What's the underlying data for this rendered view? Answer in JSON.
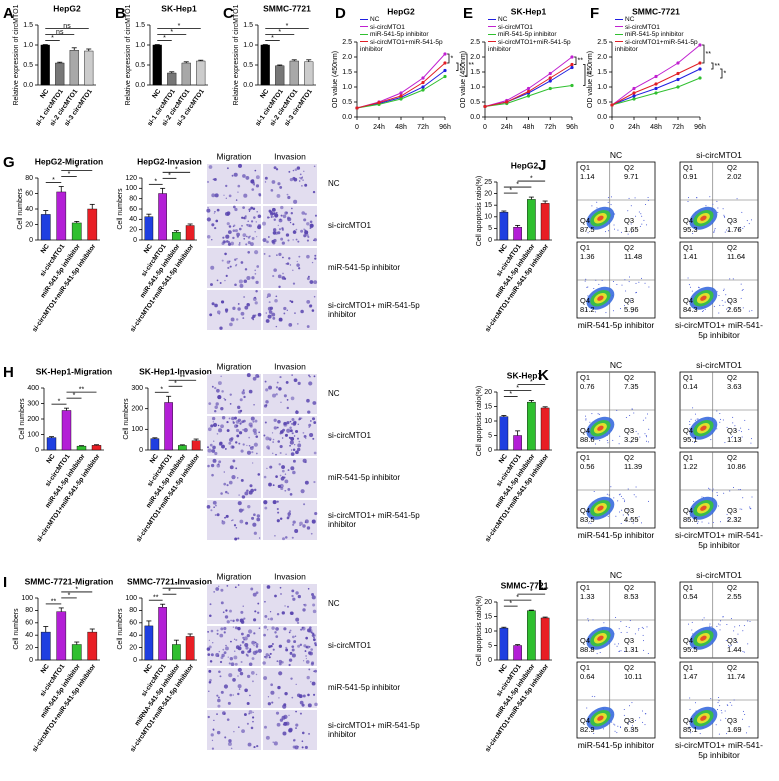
{
  "chart_data": [
    {
      "type": "bar",
      "panel_letter": "A",
      "title": "HepG2",
      "ylabel": "Relative expression of circMTO1",
      "categories": [
        "NC",
        "si-1 circMTO1",
        "si-2 circMTO1",
        "si-3 circMTO1"
      ],
      "values": [
        1.0,
        0.55,
        0.87,
        0.85
      ],
      "errors": [
        0.01,
        0.02,
        0.06,
        0.05
      ],
      "colors": [
        "#000000",
        "#777777",
        "#a8a8a8",
        "#cccccc"
      ],
      "ylim": [
        0,
        1.5
      ],
      "yticks": [
        {
          "value": 0,
          "label": "0.0"
        },
        0.5,
        {
          "value": 1,
          "label": "1.0"
        },
        1.5
      ],
      "brackets": [
        {
          "from": 0,
          "to": 1,
          "label": "*"
        },
        {
          "from": 0,
          "to": 2,
          "label": "ns"
        },
        {
          "from": 0,
          "to": 3,
          "label": "ns"
        }
      ]
    },
    {
      "type": "bar",
      "panel_letter": "B",
      "title": "SK-Hep1",
      "ylabel": "Relative expression of circMTO1",
      "categories": [
        "NC",
        "si-1 circMTO1",
        "si-2 circMTO1",
        "si-3 circMTO1"
      ],
      "values": [
        1.0,
        0.3,
        0.55,
        0.6
      ],
      "errors": [
        0.01,
        0.03,
        0.03,
        0.02
      ],
      "colors": [
        "#000000",
        "#777777",
        "#a8a8a8",
        "#cccccc"
      ],
      "ylim": [
        0,
        1.5
      ],
      "yticks": [
        {
          "value": 0,
          "label": "0.0"
        },
        0.5,
        {
          "value": 1,
          "label": "1.0"
        },
        1.5
      ],
      "brackets": [
        {
          "from": 0,
          "to": 1,
          "label": "*"
        },
        {
          "from": 0,
          "to": 2,
          "label": "*"
        },
        {
          "from": 0,
          "to": 3,
          "label": "*"
        }
      ]
    },
    {
      "type": "bar",
      "panel_letter": "C",
      "title": "SMMC-7721",
      "ylabel": "Relative expression of circMTO1",
      "categories": [
        "NC",
        "si-1 circMTO1",
        "si-2 circMTO1",
        "si-3 circMTO1"
      ],
      "values": [
        1.0,
        0.48,
        0.6,
        0.58
      ],
      "errors": [
        0.01,
        0.02,
        0.03,
        0.05
      ],
      "colors": [
        "#000000",
        "#777777",
        "#a8a8a8",
        "#cccccc"
      ],
      "ylim": [
        0,
        1.5
      ],
      "yticks": [
        {
          "value": 0,
          "label": "0.0"
        },
        0.5,
        {
          "value": 1,
          "label": "1.0"
        },
        1.5
      ],
      "brackets": [
        {
          "from": 0,
          "to": 1,
          "label": "*"
        },
        {
          "from": 0,
          "to": 2,
          "label": "*"
        },
        {
          "from": 0,
          "to": 3,
          "label": "*"
        }
      ]
    },
    {
      "type": "line",
      "panel_letter": "D",
      "title": "HepG2",
      "ylabel": "OD value (450nm)",
      "categories": [
        "0",
        "24h",
        "48h",
        "72h",
        "96h"
      ],
      "ylim": [
        0,
        2.5
      ],
      "yticks": [
        {
          "value": 0,
          "label": "0.0"
        },
        0.5,
        {
          "value": 1,
          "label": "1.0"
        },
        1.5,
        {
          "value": 2,
          "label": "2.0"
        },
        2.5
      ],
      "series": [
        {
          "name": "NC",
          "color": "#1f1fe0",
          "values": [
            0.3,
            0.45,
            0.65,
            1.0,
            1.55
          ]
        },
        {
          "name": "si-circMTO1",
          "color": "#c020d0",
          "values": [
            0.3,
            0.5,
            0.8,
            1.3,
            2.1
          ]
        },
        {
          "name": "miR-541-5p inhibitor",
          "color": "#30c030",
          "values": [
            0.3,
            0.42,
            0.6,
            0.9,
            1.35
          ]
        },
        {
          "name": "si-circMTO1+miR-541-5p inhibitor",
          "color": "#e01e25",
          "values": [
            0.3,
            0.48,
            0.7,
            1.15,
            1.8
          ]
        }
      ],
      "brackets": [
        {
          "from": 1,
          "to": 3,
          "label": "*"
        },
        {
          "from": 3,
          "to": 0,
          "label": "*"
        },
        {
          "from": 1,
          "to": 2,
          "label": "**"
        }
      ]
    },
    {
      "type": "line",
      "panel_letter": "E",
      "title": "SK-Hep1",
      "ylabel": "OD value (450nm)",
      "categories": [
        "0",
        "24h",
        "48h",
        "72h",
        "96h"
      ],
      "ylim": [
        0,
        2.5
      ],
      "yticks": [
        {
          "value": 0,
          "label": "0.0"
        },
        0.5,
        {
          "value": 1,
          "label": "1.0"
        },
        1.5,
        {
          "value": 2,
          "label": "2.0"
        },
        2.5
      ],
      "series": [
        {
          "name": "NC",
          "color": "#1f1fe0",
          "values": [
            0.35,
            0.5,
            0.8,
            1.2,
            1.65
          ]
        },
        {
          "name": "si-circMTO1",
          "color": "#c020d0",
          "values": [
            0.35,
            0.55,
            0.95,
            1.45,
            2.0
          ]
        },
        {
          "name": "miR-541-5p inhibitor",
          "color": "#30c030",
          "values": [
            0.35,
            0.45,
            0.7,
            0.95,
            1.05
          ]
        },
        {
          "name": "si-circMTO1+miR-541-5p inhibitor",
          "color": "#e01e25",
          "values": [
            0.35,
            0.5,
            0.85,
            1.3,
            1.75
          ]
        }
      ],
      "brackets": [
        {
          "from": 1,
          "to": 3,
          "label": "**"
        },
        {
          "from": 3,
          "to": 2,
          "label": "**"
        }
      ]
    },
    {
      "type": "line",
      "panel_letter": "F",
      "title": "SMMC-7721",
      "ylabel": "OD value (450nm)",
      "categories": [
        "0",
        "24h",
        "48h",
        "72h",
        "96h"
      ],
      "ylim": [
        0,
        2.5
      ],
      "yticks": [
        {
          "value": 0,
          "label": "0.0"
        },
        0.5,
        {
          "value": 1,
          "label": "1.0"
        },
        1.5,
        {
          "value": 2,
          "label": "2.0"
        },
        2.5
      ],
      "series": [
        {
          "name": "NC",
          "color": "#1f1fe0",
          "values": [
            0.4,
            0.7,
            0.95,
            1.25,
            1.6
          ]
        },
        {
          "name": "si-circMTO1",
          "color": "#c020d0",
          "values": [
            0.4,
            0.95,
            1.35,
            1.8,
            2.4
          ]
        },
        {
          "name": "miR-541-5p inhibitor",
          "color": "#30c030",
          "values": [
            0.4,
            0.6,
            0.8,
            1.0,
            1.3
          ]
        },
        {
          "name": "si-circMTO1+miR-541-5p inhibitor",
          "color": "#e01e25",
          "values": [
            0.4,
            0.8,
            1.1,
            1.45,
            1.8
          ]
        }
      ],
      "brackets": [
        {
          "from": 1,
          "to": 3,
          "label": "**"
        },
        {
          "from": 3,
          "to": 0,
          "label": "**"
        },
        {
          "from": 0,
          "to": 2,
          "label": "*"
        }
      ]
    },
    {
      "type": "bar",
      "panel_letter": "G",
      "title": "HepG2-Migration",
      "ylabel": "Cell numbers",
      "categories": [
        "NC",
        "si-circMTO1",
        "miR-541-5p inhibitor",
        "si-circMTO1+miR-541-5p inhibitor"
      ],
      "values": [
        33,
        62,
        22,
        40
      ],
      "errors": [
        5,
        7,
        2,
        6
      ],
      "colors": [
        "#1f3fe0",
        "#b31fd6",
        "#2fbf2f",
        "#e81e25"
      ],
      "ylim": [
        0,
        80
      ],
      "yticks": [
        0,
        20,
        40,
        60,
        80
      ],
      "brackets": [
        {
          "from": 0,
          "to": 1,
          "label": "*"
        },
        {
          "from": 1,
          "to": 2,
          "label": "*"
        },
        {
          "from": 1,
          "to": 3,
          "label": "*"
        }
      ]
    },
    {
      "type": "bar",
      "title": "HepG2-Invasion",
      "ylabel": "Cell numbers",
      "categories": [
        "NC",
        "si-circMTO1",
        "miR-541-5p inhibitor",
        "si-circMTO1+miR-541-5p inhibitor"
      ],
      "values": [
        45,
        90,
        15,
        28
      ],
      "errors": [
        5,
        10,
        3,
        3
      ],
      "colors": [
        "#1f3fe0",
        "#b31fd6",
        "#2fbf2f",
        "#e81e25"
      ],
      "ylim": [
        0,
        120
      ],
      "yticks": [
        0,
        20,
        40,
        60,
        80,
        100,
        120
      ],
      "brackets": [
        {
          "from": 0,
          "to": 1,
          "label": "*"
        },
        {
          "from": 1,
          "to": 2,
          "label": "*"
        },
        {
          "from": 1,
          "to": 3,
          "label": "*"
        }
      ]
    },
    {
      "type": "bar",
      "panel_letter": "H",
      "title": "SK-Hep1-Migration",
      "ylabel": "Cell numbers",
      "categories": [
        "NC",
        "si-circMTO1",
        "miR-541-5p inhibitor",
        "si-circMTO1+miR-541-5p inhibitor"
      ],
      "values": [
        80,
        255,
        25,
        30
      ],
      "errors": [
        6,
        15,
        3,
        4
      ],
      "colors": [
        "#1f3fe0",
        "#b31fd6",
        "#2fbf2f",
        "#e81e25"
      ],
      "ylim": [
        0,
        400
      ],
      "yticks": [
        0,
        100,
        200,
        300,
        400
      ],
      "brackets": [
        {
          "from": 0,
          "to": 1,
          "label": "*"
        },
        {
          "from": 1,
          "to": 2,
          "label": "*"
        },
        {
          "from": 1,
          "to": 3,
          "label": "**"
        }
      ]
    },
    {
      "type": "bar",
      "title": "SK-Hep1-Invasion",
      "ylabel": "Cell numbers",
      "categories": [
        "NC",
        "si-circMTO1",
        "miR-541-5p inhibitor",
        "si-circMTO1+miR-541-5p inhibitor"
      ],
      "values": [
        55,
        230,
        22,
        45
      ],
      "errors": [
        4,
        30,
        3,
        8
      ],
      "colors": [
        "#1f3fe0",
        "#b31fd6",
        "#2fbf2f",
        "#e81e25"
      ],
      "ylim": [
        0,
        300
      ],
      "yticks": [
        0,
        100,
        200,
        300
      ],
      "brackets": [
        {
          "from": 0,
          "to": 1,
          "label": "*"
        },
        {
          "from": 1,
          "to": 2,
          "label": "*"
        },
        {
          "from": 1,
          "to": 3,
          "label": "**"
        }
      ]
    },
    {
      "type": "bar",
      "panel_letter": "I",
      "title": "SMMC-7721-Migration",
      "ylabel": "Cell numbers",
      "categories": [
        "NC",
        "si-circMTO1",
        "miR-541-5p inhibitor",
        "si-circMTO1+miR-541-5p inhibitor"
      ],
      "values": [
        45,
        78,
        25,
        45
      ],
      "errors": [
        9,
        6,
        4,
        5
      ],
      "colors": [
        "#1f3fe0",
        "#b31fd6",
        "#2fbf2f",
        "#e81e25"
      ],
      "ylim": [
        0,
        100
      ],
      "yticks": [
        0,
        20,
        40,
        60,
        80,
        100
      ],
      "brackets": [
        {
          "from": 0,
          "to": 1,
          "label": "**"
        },
        {
          "from": 1,
          "to": 2,
          "label": "*"
        },
        {
          "from": 1,
          "to": 3,
          "label": "*"
        }
      ]
    },
    {
      "type": "bar",
      "title": "SMMC-7721-Invasion",
      "ylabel": "Cell numbers",
      "categories": [
        "NC",
        "si-circMTO1",
        "miRNA-541-5p inhibitor",
        "si-circMTO1+miR-541-5p inhibitor"
      ],
      "values": [
        55,
        85,
        25,
        38
      ],
      "errors": [
        8,
        5,
        7,
        4
      ],
      "colors": [
        "#1f3fe0",
        "#b31fd6",
        "#2fbf2f",
        "#e81e25"
      ],
      "ylim": [
        0,
        100
      ],
      "yticks": [
        0,
        20,
        40,
        60,
        80,
        100
      ],
      "brackets": [
        {
          "from": 0,
          "to": 1,
          "label": "**"
        },
        {
          "from": 1,
          "to": 2,
          "label": "*"
        },
        {
          "from": 1,
          "to": 3,
          "label": "*"
        }
      ]
    },
    {
      "type": "bar",
      "panel_letter": "J",
      "title": "HepG2",
      "ylabel": "Cell apoptosis ratio(%)",
      "categories": [
        "NC",
        "si-circMTO1",
        "miR-541-5p inhibitor",
        "si-circMTO1+miR-541-5p inhibitor"
      ],
      "values": [
        12,
        5.5,
        17.5,
        15.8
      ],
      "errors": [
        0.5,
        0.8,
        1,
        1
      ],
      "colors": [
        "#1f3fe0",
        "#b31fd6",
        "#2fbf2f",
        "#e81e25"
      ],
      "ylim": [
        0,
        25
      ],
      "yticks": [
        0,
        5,
        10,
        15,
        20,
        25
      ],
      "brackets": [
        {
          "from": 0,
          "to": 1,
          "label": "*"
        },
        {
          "from": 0,
          "to": 2,
          "label": "*"
        },
        {
          "from": 1,
          "to": 3,
          "label": "*"
        }
      ]
    },
    {
      "type": "bar",
      "panel_letter": "K",
      "title": "SK-Hep1",
      "ylabel": "Cell apoptosis ratio(%)",
      "categories": [
        "NC",
        "si-circMTO1",
        "miR-541-5p inhibitor",
        "si-circMTO1+miR-541-5p inhibitor"
      ],
      "values": [
        11.5,
        5,
        16.5,
        14.5
      ],
      "errors": [
        0.4,
        1.6,
        0.6,
        0.4
      ],
      "colors": [
        "#1f3fe0",
        "#b31fd6",
        "#2fbf2f",
        "#e81e25"
      ],
      "ylim": [
        0,
        20
      ],
      "yticks": [
        0,
        5,
        10,
        15,
        20
      ],
      "brackets": [
        {
          "from": 0,
          "to": 1,
          "label": "*"
        },
        {
          "from": 0,
          "to": 2,
          "label": "*"
        },
        {
          "from": 1,
          "to": 3,
          "label": "*"
        }
      ]
    },
    {
      "type": "bar",
      "panel_letter": "L",
      "title": "SMMC-7721",
      "ylabel": "Cell apoptosis ratio(%)",
      "categories": [
        "NC",
        "si-circMTO1",
        "miR-541-5p inhibitor",
        "si-circMTO1+miR-541-5p inhibitor"
      ],
      "values": [
        11,
        5,
        17,
        14.5
      ],
      "errors": [
        0.3,
        0.3,
        0.2,
        0.3
      ],
      "colors": [
        "#1f3fe0",
        "#b31fd6",
        "#2fbf2f",
        "#e81e25"
      ],
      "ylim": [
        0,
        20
      ],
      "yticks": [
        0,
        5,
        10,
        15,
        20
      ],
      "brackets": [
        {
          "from": 0,
          "to": 1,
          "label": "*"
        },
        {
          "from": 0,
          "to": 2,
          "label": "*"
        },
        {
          "from": 1,
          "to": 3,
          "label": "*"
        }
      ]
    }
  ],
  "migration_invasion_images": [
    {
      "columns": [
        "Migration",
        "Invasion"
      ],
      "rows": [
        "NC",
        "si-circMTO1",
        "miR-541-5p inhibitor",
        "si-circMTO1+ miR-541-5p inhibitor"
      ]
    },
    {
      "columns": [
        "Migration",
        "Invasion"
      ],
      "rows": [
        "NC",
        "si-circMTO1",
        "miR-541-5p inhibitor",
        "si-circMTO1+ miR-541-5p inhibitor"
      ]
    },
    {
      "columns": [
        "Migration",
        "Invasion"
      ],
      "rows": [
        "NC",
        "si-circMTO1",
        "miR-541-5p inhibitor",
        "si-circMTO1+ miR-541-5p inhibitor"
      ]
    }
  ],
  "apoptosis_plots": {
    "quadrant_labels": [
      "Q1",
      "Q2",
      "Q3",
      "Q4"
    ],
    "grids": [
      {
        "labels": [
          "NC",
          "si-circMTO1",
          "miR-541-5p inhibitor",
          "si-circMTO1+ miR-541-5p inhibitor"
        ],
        "quadrants": [
          [
            1.14,
            9.71,
            1.65,
            87.5
          ],
          [
            0.91,
            2.02,
            1.76,
            95.3
          ],
          [
            1.36,
            11.48,
            5.96,
            81.2
          ],
          [
            1.41,
            11.64,
            2.65,
            84.3
          ]
        ]
      },
      {
        "labels": [
          "NC",
          "si-circMTO1",
          "miR-541-5p inhibitor",
          "si-circMTO1+ miR-541-5p inhibitor"
        ],
        "quadrants": [
          [
            0.76,
            7.35,
            3.29,
            88.6
          ],
          [
            0.14,
            3.63,
            1.13,
            95.1
          ],
          [
            0.56,
            11.39,
            4.55,
            83.5
          ],
          [
            1.22,
            10.86,
            2.32,
            85.6
          ]
        ]
      },
      {
        "labels": [
          "NC",
          "si-circMTO1",
          "miR-541-5p inhibitor",
          "si-circMTO1+ miR-541-5p inhibitor"
        ],
        "quadrants": [
          [
            1.33,
            8.53,
            1.31,
            88.8
          ],
          [
            0.54,
            2.55,
            1.44,
            95.5
          ],
          [
            0.64,
            10.11,
            6.35,
            82.9
          ],
          [
            1.47,
            11.74,
            1.69,
            85.1
          ]
        ]
      }
    ]
  }
}
